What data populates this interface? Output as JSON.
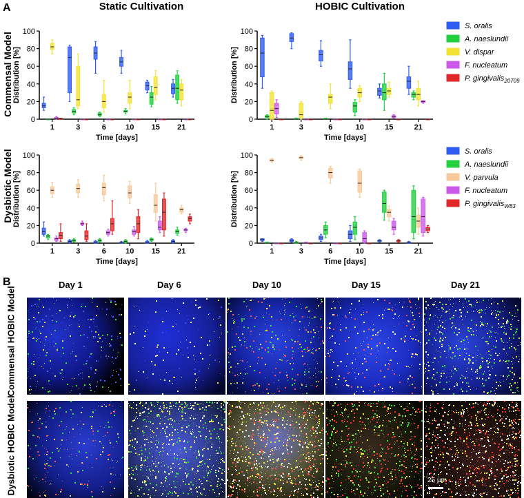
{
  "panel_labels": {
    "a": "A",
    "b": "B"
  },
  "column_titles": {
    "static": "Static Cultivation",
    "hobic": "HOBIC Cultivation"
  },
  "row_titles": {
    "commensal": "Commensal Model",
    "dysbiotic": "Dysbiotic Model"
  },
  "axis": {
    "ylabel": "Distribution [%]",
    "xlabel": "Time [days]",
    "yticks": [
      "0",
      "20",
      "40",
      "60",
      "80",
      "100"
    ],
    "ylim": [
      0,
      100
    ]
  },
  "legend_commensal": [
    {
      "name": "S. oralis",
      "italic": true,
      "color": "#2f5bf0"
    },
    {
      "name": "A. naeslundii",
      "italic": true,
      "color": "#22d040"
    },
    {
      "name": "V. dispar",
      "italic": true,
      "color": "#f2e233"
    },
    {
      "name": "F. nucleatum",
      "italic": true,
      "color": "#cc5ae8"
    },
    {
      "name": "P. gingivalis",
      "sub": "20709",
      "italic": true,
      "color": "#e02828"
    }
  ],
  "legend_dysbiotic": [
    {
      "name": "S. oralis",
      "italic": true,
      "color": "#2f5bf0"
    },
    {
      "name": "A. naeslundii",
      "italic": true,
      "color": "#22d040"
    },
    {
      "name": "V. parvula",
      "italic": true,
      "color": "#f7c99a"
    },
    {
      "name": "F. nucleatum",
      "italic": true,
      "color": "#cc5ae8"
    },
    {
      "name": "P. gingivalis",
      "sub": "W83",
      "italic": true,
      "color": "#e02828"
    }
  ],
  "chart_data": [
    {
      "type": "box",
      "title": "Static Cultivation — Commensal Model",
      "categories": [
        "1",
        "3",
        "6",
        "10",
        "15",
        "21"
      ],
      "xlabel": "Time [days]",
      "ylabel": "Distribution [%]",
      "ylim": [
        0,
        100
      ],
      "series": [
        {
          "name": "S. oralis",
          "boxes": [
            [
              10,
              13,
              15,
              18,
              25
            ],
            [
              20,
              30,
              70,
              82,
              84
            ],
            [
              52,
              68,
              75,
              82,
              88
            ],
            [
              52,
              60,
              65,
              70,
              78
            ],
            [
              30,
              33,
              38,
              42,
              44
            ],
            [
              25,
              29,
              35,
              40,
              45
            ]
          ]
        },
        {
          "name": "A. naeslundii",
          "boxes": [
            [
              0,
              0,
              0,
              0,
              0
            ],
            [
              5,
              7,
              9,
              11,
              13
            ],
            [
              3,
              4,
              5,
              7,
              8
            ],
            [
              6,
              8,
              9,
              10,
              12
            ],
            [
              14,
              17,
              25,
              30,
              37
            ],
            [
              18,
              22,
              35,
              50,
              55
            ]
          ]
        },
        {
          "name": "V. dispar",
          "boxes": [
            [
              74,
              79,
              82,
              86,
              90
            ],
            [
              12,
              15,
              22,
              60,
              74
            ],
            [
              8,
              13,
              20,
              28,
              44
            ],
            [
              12,
              18,
              25,
              30,
              44
            ],
            [
              22,
              28,
              36,
              48,
              55
            ],
            [
              15,
              22,
              33,
              40,
              45
            ]
          ]
        },
        {
          "name": "F. nucleatum",
          "boxes": [
            [
              0,
              1,
              1,
              2,
              3
            ],
            [
              0,
              0,
              0,
              0,
              0
            ],
            [
              0,
              0,
              0,
              0,
              0
            ],
            [
              0,
              0,
              0,
              0,
              0
            ],
            [
              0,
              0,
              0,
              0,
              0
            ],
            [
              0,
              0,
              0,
              0,
              0
            ]
          ]
        },
        {
          "name": "P. gingivalis 20709",
          "boxes": [
            [
              0,
              0,
              1,
              1,
              1
            ],
            [
              0,
              0,
              0,
              0,
              0
            ],
            [
              0,
              0,
              0,
              0,
              0
            ],
            [
              0,
              0,
              0,
              0,
              0
            ],
            [
              0,
              0,
              0,
              0,
              0
            ],
            [
              0,
              0,
              0,
              0,
              0
            ]
          ]
        }
      ]
    },
    {
      "type": "box",
      "title": "HOBIC Cultivation — Commensal Model",
      "categories": [
        "1",
        "3",
        "6",
        "10",
        "15",
        "21"
      ],
      "xlabel": "Time [days]",
      "ylabel": "Distribution [%]",
      "ylim": [
        0,
        100
      ],
      "series": [
        {
          "name": "S. oralis",
          "boxes": [
            [
              35,
              48,
              75,
              92,
              95
            ],
            [
              80,
              88,
              92,
              97,
              98
            ],
            [
              60,
              66,
              73,
              78,
              89
            ],
            [
              35,
              45,
              57,
              65,
              90
            ],
            [
              24,
              27,
              32,
              35,
              40
            ],
            [
              28,
              35,
              43,
              48,
              60
            ]
          ]
        },
        {
          "name": "A. naeslundii",
          "boxes": [
            [
              0,
              2,
              3,
              4,
              5
            ],
            [
              0,
              0,
              0,
              1,
              1
            ],
            [
              0,
              0,
              0,
              1,
              1
            ],
            [
              4,
              8,
              15,
              19,
              22
            ],
            [
              10,
              22,
              30,
              40,
              52
            ],
            [
              22,
              25,
              28,
              30,
              32
            ]
          ]
        },
        {
          "name": "V. dispar",
          "boxes": [
            [
              0,
              0,
              10,
              30,
              32
            ],
            [
              0,
              2,
              5,
              18,
              20
            ],
            [
              12,
              18,
              25,
              28,
              40
            ],
            [
              20,
              25,
              30,
              35,
              38
            ],
            [
              25,
              28,
              32,
              35,
              42
            ],
            [
              15,
              22,
              28,
              35,
              43
            ]
          ]
        },
        {
          "name": "F. nucleatum",
          "boxes": [
            [
              2,
              6,
              12,
              18,
              22
            ],
            [
              0,
              0,
              0,
              0,
              0
            ],
            [
              0,
              0,
              0,
              0,
              0
            ],
            [
              0,
              0,
              0,
              0,
              0
            ],
            [
              1,
              2,
              3,
              4,
              5
            ],
            [
              18,
              19,
              20,
              21,
              21
            ]
          ]
        },
        {
          "name": "P. gingivalis 20709",
          "boxes": [
            [
              0,
              0,
              0,
              0,
              0
            ],
            [
              0,
              0,
              0,
              0,
              0
            ],
            [
              0,
              0,
              0,
              0,
              0
            ],
            [
              0,
              0,
              0,
              0,
              0
            ],
            [
              0,
              0,
              0,
              0,
              0
            ],
            [
              0,
              0,
              0,
              0,
              0
            ]
          ]
        }
      ]
    },
    {
      "type": "box",
      "title": "Static Cultivation — Dysbiotic Model",
      "categories": [
        "1",
        "3",
        "6",
        "10",
        "15",
        "21"
      ],
      "xlabel": "Time [days]",
      "ylabel": "Distribution [%]",
      "ylim": [
        0,
        100
      ],
      "series": [
        {
          "name": "S. oralis",
          "boxes": [
            [
              8,
              10,
              13,
              17,
              24
            ],
            [
              0,
              1,
              2,
              3,
              4
            ],
            [
              0,
              0,
              1,
              2,
              3
            ],
            [
              0,
              0,
              1,
              1,
              2
            ],
            [
              0,
              0,
              1,
              2,
              3
            ],
            [
              0,
              1,
              2,
              3,
              4
            ]
          ]
        },
        {
          "name": "A. naeslundii",
          "boxes": [
            [
              4,
              6,
              8,
              9,
              10
            ],
            [
              1,
              2,
              3,
              4,
              5
            ],
            [
              1,
              2,
              3,
              4,
              5
            ],
            [
              0,
              1,
              2,
              3,
              4
            ],
            [
              2,
              3,
              4,
              5,
              6
            ],
            [
              9,
              11,
              13,
              15,
              18
            ]
          ]
        },
        {
          "name": "V. parvula",
          "boxes": [
            [
              52,
              56,
              60,
              64,
              69
            ],
            [
              52,
              57,
              62,
              67,
              72
            ],
            [
              48,
              55,
              63,
              68,
              77
            ],
            [
              45,
              51,
              57,
              65,
              70
            ],
            [
              25,
              35,
              43,
              55,
              68
            ],
            [
              33,
              35,
              38,
              40,
              43
            ]
          ]
        },
        {
          "name": "F. nucleatum",
          "boxes": [
            [
              2,
              3,
              5,
              6,
              8
            ],
            [
              20,
              21,
              22,
              23,
              25
            ],
            [
              8,
              10,
              12,
              14,
              16
            ],
            [
              8,
              10,
              13,
              15,
              19
            ],
            [
              12,
              15,
              18,
              25,
              30
            ],
            [
              12,
              14,
              15,
              16,
              17
            ]
          ]
        },
        {
          "name": "P. gingivalis W83",
          "boxes": [
            [
              2,
              5,
              9,
              12,
              22
            ],
            [
              2,
              4,
              8,
              14,
              22
            ],
            [
              10,
              14,
              22,
              28,
              48
            ],
            [
              5,
              12,
              22,
              30,
              38
            ],
            [
              8,
              15,
              35,
              50,
              57
            ],
            [
              22,
              25,
              28,
              30,
              33
            ]
          ]
        }
      ]
    },
    {
      "type": "box",
      "title": "HOBIC Cultivation — Dysbiotic Model",
      "categories": [
        "1",
        "3",
        "6",
        "10",
        "15",
        "21"
      ],
      "xlabel": "Time [days]",
      "ylabel": "Distribution [%]",
      "ylim": [
        0,
        100
      ],
      "series": [
        {
          "name": "S. oralis",
          "boxes": [
            [
              2,
              3,
              4,
              5,
              5
            ],
            [
              1,
              2,
              3,
              4,
              5
            ],
            [
              2,
              4,
              6,
              8,
              10
            ],
            [
              2,
              5,
              10,
              14,
              20
            ],
            [
              1,
              2,
              3,
              3,
              4
            ],
            [
              0,
              0,
              1,
              1,
              2
            ]
          ]
        },
        {
          "name": "A. naeslundii",
          "boxes": [
            [
              0,
              0,
              0,
              1,
              1
            ],
            [
              0,
              0,
              1,
              1,
              2
            ],
            [
              6,
              10,
              15,
              20,
              24
            ],
            [
              4,
              10,
              18,
              24,
              30
            ],
            [
              26,
              35,
              45,
              58,
              60
            ],
            [
              5,
              12,
              30,
              60,
              65
            ]
          ]
        },
        {
          "name": "V. parvula",
          "boxes": [
            [
              92,
              93,
              94,
              95,
              96
            ],
            [
              94,
              96,
              97,
              98,
              99
            ],
            [
              68,
              74,
              80,
              85,
              87
            ],
            [
              52,
              58,
              68,
              82,
              84
            ],
            [
              25,
              30,
              35,
              38,
              42
            ],
            [
              10,
              18,
              25,
              32,
              40
            ]
          ]
        },
        {
          "name": "F. nucleatum",
          "boxes": [
            [
              0,
              0,
              0,
              0,
              0
            ],
            [
              0,
              0,
              0,
              1,
              1
            ],
            [
              0,
              0,
              0,
              0,
              0
            ],
            [
              0,
              1,
              5,
              12,
              14
            ],
            [
              10,
              15,
              18,
              25,
              28
            ],
            [
              8,
              12,
              30,
              50,
              52
            ]
          ]
        },
        {
          "name": "P. gingivalis W83",
          "boxes": [
            [
              0,
              0,
              0,
              0,
              0
            ],
            [
              0,
              0,
              0,
              0,
              0
            ],
            [
              0,
              0,
              0,
              0,
              0
            ],
            [
              0,
              0,
              0,
              0,
              0
            ],
            [
              1,
              2,
              3,
              3,
              4
            ],
            [
              12,
              14,
              16,
              18,
              20
            ]
          ]
        }
      ]
    }
  ],
  "micrographs": {
    "days": [
      "Day 1",
      "Day 6",
      "Day 10",
      "Day 15",
      "Day 21"
    ],
    "rows": [
      "Commensal HOBIC Model",
      "Dysbiotic HOBIC Model"
    ],
    "scale_bar": "25 µm"
  }
}
